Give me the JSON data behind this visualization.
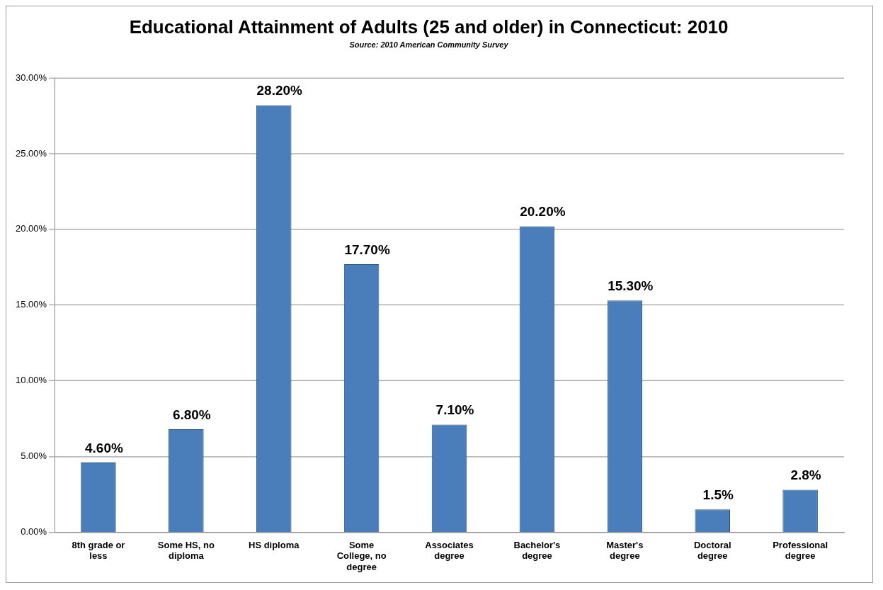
{
  "chart_data": {
    "type": "bar",
    "title": "Educational Attainment of Adults (25 and older) in Connecticut: 2010",
    "annotations": [
      "Source: 2010 American Community Survey"
    ],
    "categories": [
      "8th grade or less",
      "Some HS, no diploma",
      "HS diploma",
      "Some College, no degree",
      "Associates degree",
      "Bachelor's degree",
      "Master's degree",
      "Doctoral degree",
      "Professional degree"
    ],
    "values": [
      4.6,
      6.8,
      28.2,
      17.7,
      7.1,
      20.2,
      15.3,
      1.5,
      2.8
    ],
    "value_labels": [
      "4.60%",
      "6.80%",
      "28.20%",
      "17.70%",
      "7.10%",
      "20.20%",
      "15.30%",
      "1.5%",
      "2.8%"
    ],
    "color": "#4a7ebb",
    "ylim": [
      0,
      30
    ],
    "yticks": [
      {
        "value": 0,
        "label": "0.00%"
      },
      {
        "value": 5,
        "label": "5.00%"
      },
      {
        "value": 10,
        "label": "10.00%"
      },
      {
        "value": 15,
        "label": "15.00%"
      },
      {
        "value": 20,
        "label": "20.00%"
      },
      {
        "value": 25,
        "label": "25.00%"
      },
      {
        "value": 30,
        "label": "30.00%"
      }
    ],
    "grid": "y",
    "legend": false
  }
}
